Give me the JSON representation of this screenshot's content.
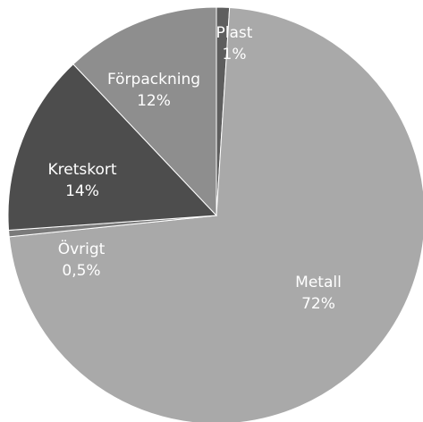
{
  "chart_data": {
    "type": "pie",
    "title": "",
    "slices": [
      {
        "label": "Plast",
        "value": 1,
        "value_label": "1%",
        "color": "#5e5e5e"
      },
      {
        "label": "Metall",
        "value": 72,
        "value_label": "72%",
        "color": "#a9a9a9"
      },
      {
        "label": "Övrigt",
        "value": 0.5,
        "value_label": "0,5%",
        "color": "#7a7a7a"
      },
      {
        "label": "Kretskort",
        "value": 14,
        "value_label": "14%",
        "color": "#4d4d4d"
      },
      {
        "label": "Förpackning",
        "value": 12,
        "value_label": "12%",
        "color": "#8e8e8e"
      }
    ],
    "start_angle_deg": 0,
    "direction": "clockwise",
    "legend": "none",
    "label_color": "#ffffff",
    "slice_border_color": "#ffffff"
  }
}
